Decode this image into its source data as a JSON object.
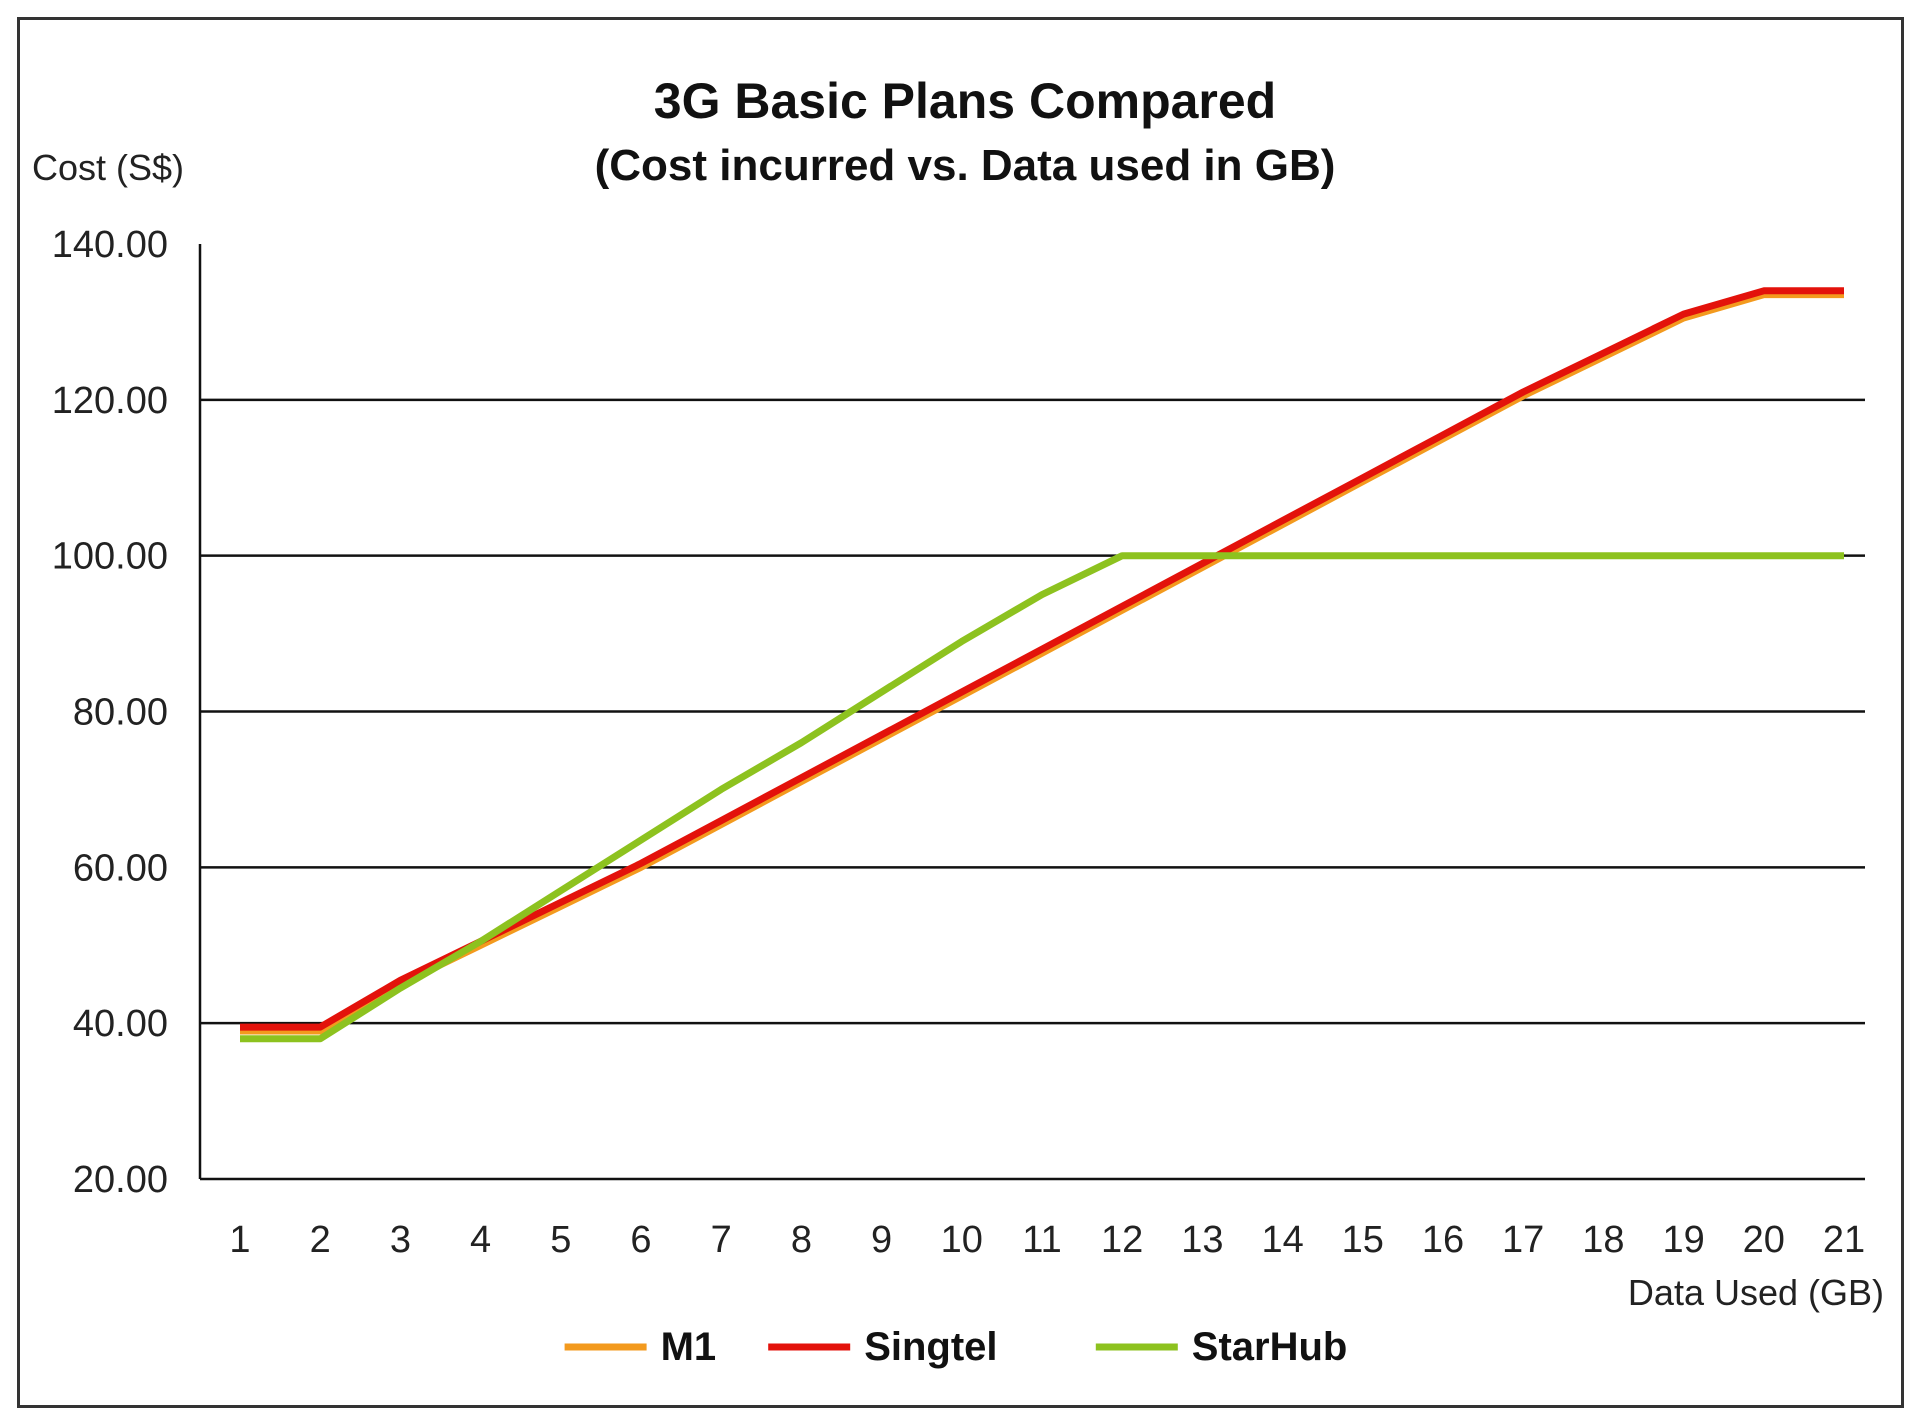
{
  "chart_data": {
    "type": "line",
    "title": "3G Basic Plans Compared",
    "subtitle": "(Cost incurred vs. Data used in GB)",
    "ylabel": "Cost (S$)",
    "xlabel": "Data Used (GB)",
    "ylim": [
      20,
      140
    ],
    "yticks": [
      "20.00",
      "40.00",
      "60.00",
      "80.00",
      "100.00",
      "120.00",
      "140.00"
    ],
    "grid": true,
    "legend": "bottom",
    "x": [
      1,
      2,
      3,
      4,
      5,
      6,
      7,
      8,
      9,
      10,
      11,
      12,
      13,
      14,
      15,
      16,
      17,
      18,
      19,
      20,
      21
    ],
    "series": [
      {
        "name": "M1",
        "color": "#F39A1E",
        "values": [
          39,
          39,
          45,
          50,
          55,
          60,
          65.5,
          71,
          76.5,
          82,
          87.5,
          93,
          98.5,
          104,
          109.5,
          115,
          120.5,
          125.5,
          130.5,
          133.5,
          133.5
        ]
      },
      {
        "name": "Singtel",
        "color": "#E3120B",
        "values": [
          39.5,
          39.5,
          45.5,
          50.5,
          55.5,
          60.5,
          66,
          71.5,
          77,
          82.5,
          88,
          93.5,
          99,
          104.5,
          110,
          115.5,
          121,
          126,
          131,
          134,
          134
        ]
      },
      {
        "name": "StarHub",
        "color": "#8DC21F",
        "values": [
          38,
          38,
          44.5,
          50.5,
          57,
          63.5,
          70,
          76,
          82.5,
          89,
          95,
          100,
          100,
          100,
          100,
          100,
          100,
          100,
          100,
          100,
          100
        ]
      }
    ]
  }
}
